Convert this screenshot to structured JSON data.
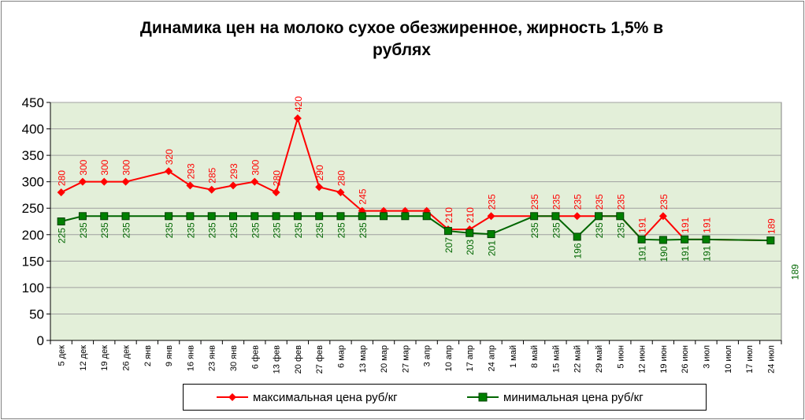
{
  "title": {
    "line1": "Динамика цен на молоко сухое обезжиренное, жирность 1,5%  в",
    "line2": "рублях"
  },
  "colors": {
    "max": "#ff0000",
    "min": "#006600",
    "min_marker": "#008000",
    "plot_bg": "#e3efd9",
    "grid": "#a0a0a0"
  },
  "chart_data": {
    "type": "line",
    "title": "Динамика цен на молоко сухое обезжиренное, жирность 1,5%  в рублях",
    "xlabel": "",
    "ylabel": "",
    "ylim": [
      0,
      450
    ],
    "yticks": [
      0,
      50,
      100,
      150,
      200,
      250,
      300,
      350,
      400,
      450
    ],
    "grid": true,
    "legend_position": "bottom",
    "categories": [
      "5 дек",
      "12 дек",
      "19 дек",
      "26 дек",
      "2 янв",
      "9 янв",
      "16 янв",
      "23 янв",
      "30 янв",
      "6 фев",
      "13 фев",
      "20 фев",
      "27 фев",
      "6 мар",
      "13 мар",
      "20 мар",
      "27 мар",
      "3 апр",
      "10 апр",
      "17 апр",
      "24 апр",
      "1 май",
      "8 май",
      "15 май",
      "22 май",
      "29 май",
      "5 июн",
      "12 июн",
      "19 июн",
      "26 июн",
      "3 июл",
      "10 июл",
      "17 июл",
      "24 июл"
    ],
    "series": [
      {
        "name": "максимальная цена руб/кг",
        "values": [
          280,
          300,
          300,
          300,
          null,
          320,
          293,
          285,
          293,
          300,
          280,
          420,
          290,
          280,
          245,
          245,
          245,
          245,
          210,
          210,
          235,
          null,
          235,
          235,
          235,
          235,
          235,
          191,
          235,
          191,
          191,
          null,
          null,
          189
        ],
        "labels": [
          "280",
          "300",
          "300",
          "300",
          "",
          "320",
          "293",
          "285",
          "293",
          "300",
          "280",
          "420",
          "290",
          "280",
          "245",
          "",
          "",
          "",
          "210",
          "210",
          "235",
          "",
          "235",
          "235",
          "235",
          "235",
          "235",
          "191",
          "235",
          "191",
          "191",
          "",
          "",
          "189"
        ]
      },
      {
        "name": "минимальная цена руб/кг",
        "values": [
          225,
          235,
          235,
          235,
          null,
          235,
          235,
          235,
          235,
          235,
          235,
          235,
          235,
          235,
          235,
          235,
          235,
          235,
          207,
          203,
          201,
          null,
          235,
          235,
          196,
          235,
          235,
          191,
          190,
          191,
          191,
          null,
          null,
          189
        ],
        "labels": [
          "225",
          "235",
          "235",
          "235",
          "",
          "235",
          "235",
          "235",
          "235",
          "235",
          "235",
          "235",
          "235",
          "235",
          "235",
          "",
          "",
          "",
          "207",
          "203",
          "201",
          "",
          "235",
          "235",
          "196",
          "235",
          "235",
          "191",
          "190",
          "191",
          "191",
          "",
          "",
          "189"
        ]
      }
    ]
  }
}
